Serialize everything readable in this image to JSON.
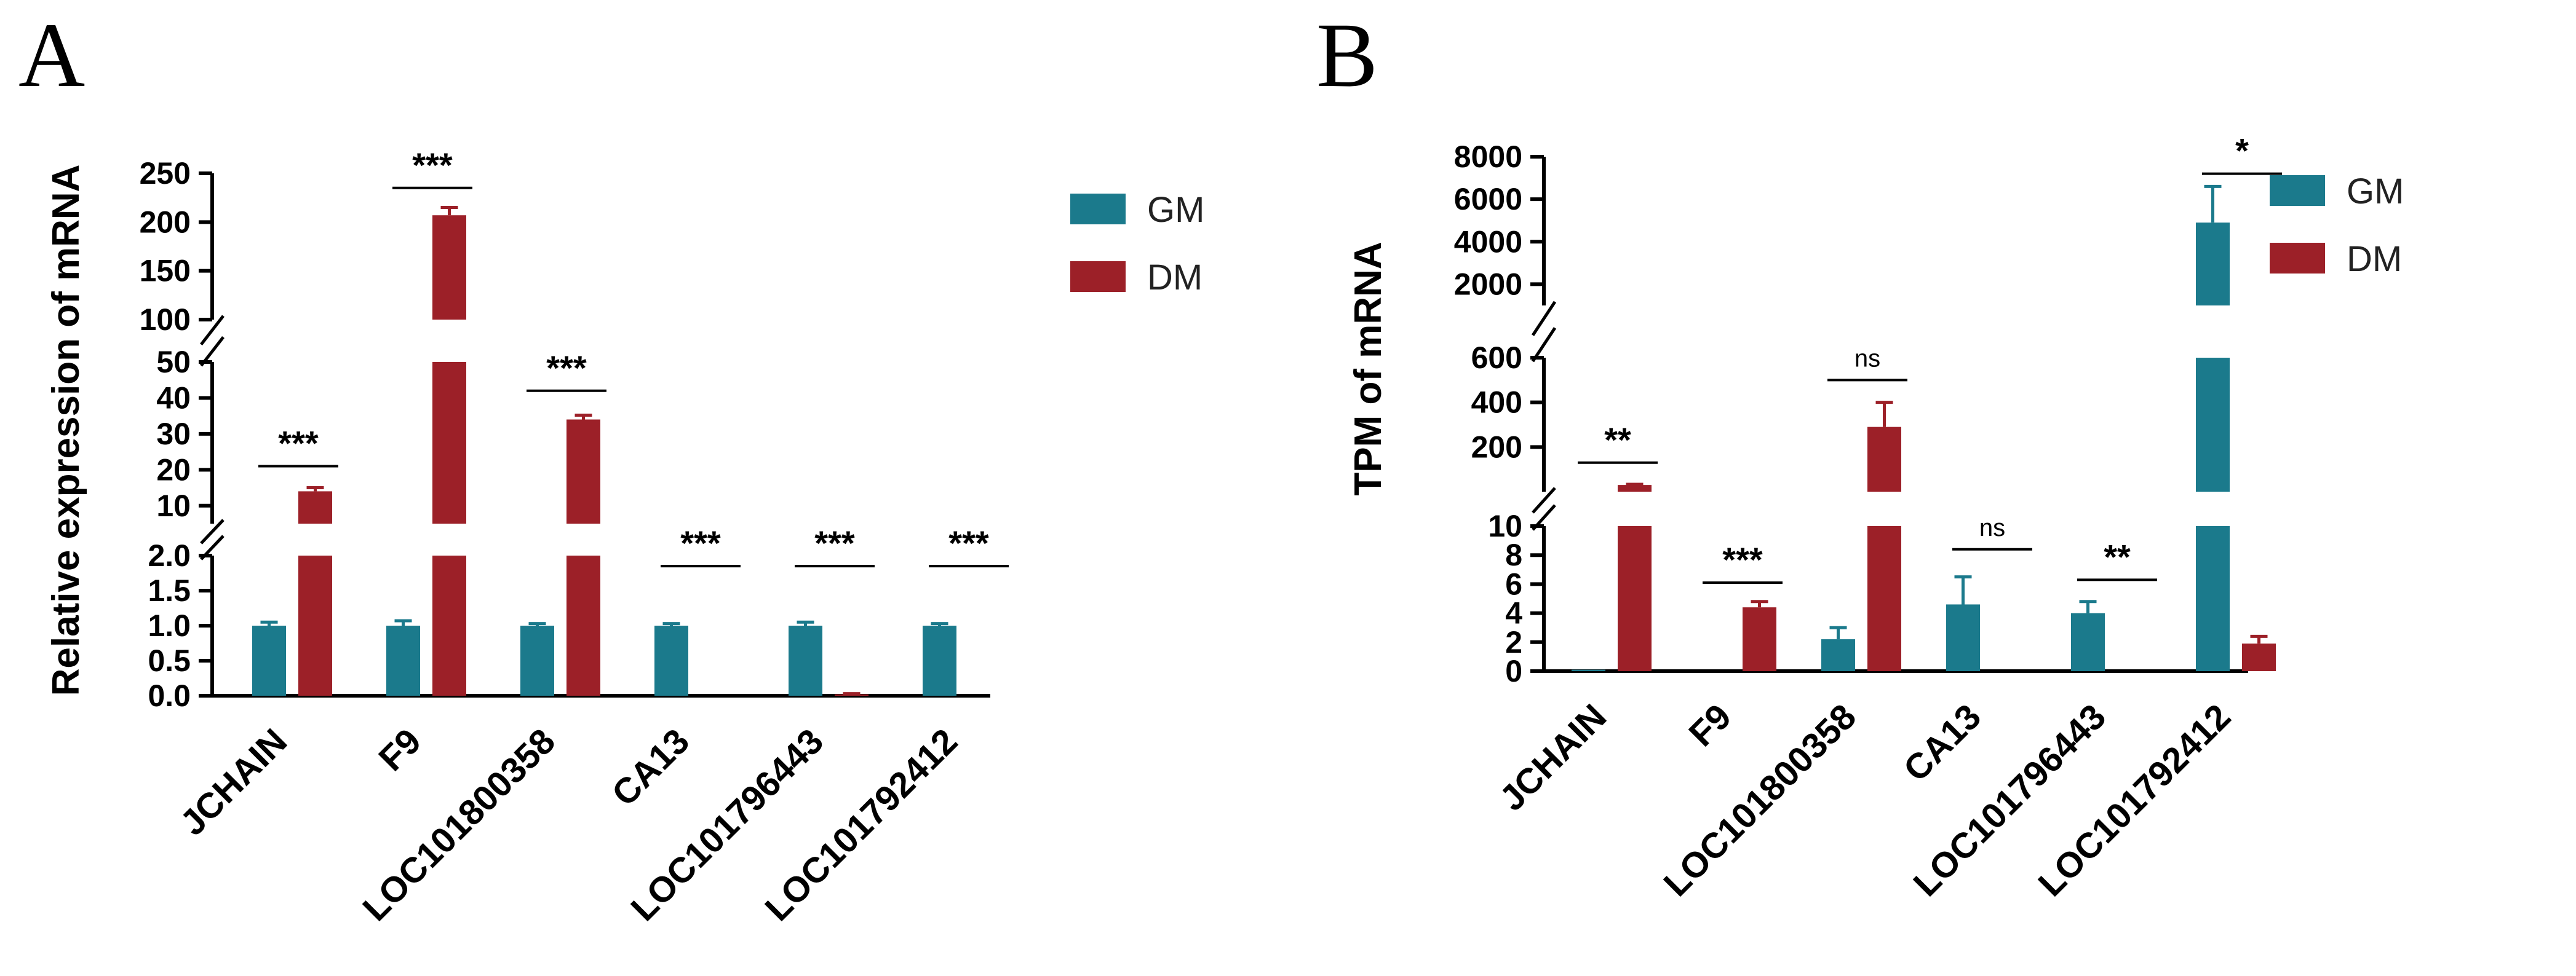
{
  "colors": {
    "GM": "#1b7a8c",
    "DM": "#9c2028"
  },
  "chart_data": [
    {
      "panel": "A",
      "type": "bar",
      "ylabel": "Relative expression of mRNA",
      "categories": [
        "JCHAIN",
        "F9",
        "LOC101800358",
        "CA13",
        "LOC101796443",
        "LOC101792412"
      ],
      "series": [
        {
          "name": "GM",
          "values": [
            1.0,
            1.0,
            1.0,
            1.0,
            1.0,
            1.0
          ],
          "errors": [
            0.05,
            0.07,
            0.03,
            0.03,
            0.05,
            0.03
          ]
        },
        {
          "name": "DM",
          "values": [
            14,
            207,
            34,
            0.0,
            0.02,
            0.0
          ],
          "errors": [
            1.0,
            8,
            1.2,
            0,
            0.01,
            0
          ]
        }
      ],
      "segments": [
        {
          "range": [
            0,
            2
          ],
          "ticks": [
            0,
            0.5,
            1.0,
            1.5,
            2.0
          ],
          "tick_labels": [
            "0.0",
            "0.5",
            "1.0",
            "1.5",
            "2.0"
          ]
        },
        {
          "range": [
            5,
            50
          ],
          "ticks": [
            10,
            20,
            30,
            40,
            50
          ],
          "tick_labels": [
            "10",
            "20",
            "30",
            "40",
            "50"
          ]
        },
        {
          "range": [
            100,
            250
          ],
          "ticks": [
            100,
            150,
            200,
            250
          ],
          "tick_labels": [
            "100",
            "150",
            "200",
            "250"
          ]
        }
      ],
      "significance": [
        {
          "index": 0,
          "label": "***",
          "y": 21
        },
        {
          "index": 1,
          "label": "***",
          "y": 235
        },
        {
          "index": 2,
          "label": "***",
          "y": 42
        },
        {
          "index": 3,
          "label": "***",
          "y": 1.85
        },
        {
          "index": 4,
          "label": "***",
          "y": 1.85
        },
        {
          "index": 5,
          "label": "***",
          "y": 1.85
        }
      ],
      "legend": [
        "GM",
        "DM"
      ]
    },
    {
      "panel": "B",
      "type": "bar",
      "ylabel": "TPM of mRNA",
      "categories": [
        "JCHAIN",
        "F9",
        "LOC101800358",
        "CA13",
        "LOC101796443",
        "LOC101792412"
      ],
      "series": [
        {
          "name": "GM",
          "values": [
            0.1,
            0.0,
            2.2,
            4.6,
            4.0,
            4900
          ],
          "errors": [
            0,
            0,
            0.8,
            1.9,
            0.8,
            1700
          ]
        },
        {
          "name": "DM",
          "values": [
            30,
            4.4,
            290,
            0.0,
            0.0,
            1.9
          ],
          "errors": [
            3,
            0.4,
            110,
            0,
            0,
            0.5
          ]
        }
      ],
      "segments": [
        {
          "range": [
            0,
            10
          ],
          "ticks": [
            0,
            2,
            4,
            6,
            8,
            10
          ],
          "tick_labels": [
            "0",
            "2",
            "4",
            "6",
            "8",
            "10"
          ]
        },
        {
          "range": [
            0,
            600
          ],
          "ticks": [
            200,
            400,
            600
          ],
          "tick_labels": [
            "200",
            "400",
            "600"
          ]
        },
        {
          "range": [
            1000,
            8000
          ],
          "ticks": [
            2000,
            4000,
            6000,
            8000
          ],
          "tick_labels": [
            "2000",
            "4000",
            "6000",
            "8000"
          ]
        }
      ],
      "significance": [
        {
          "index": 0,
          "label": "**",
          "y": 130
        },
        {
          "index": 1,
          "label": "***",
          "y": 6.1
        },
        {
          "index": 2,
          "label": "ns",
          "y": 500
        },
        {
          "index": 3,
          "label": "ns",
          "y": 8.4
        },
        {
          "index": 4,
          "label": "**",
          "y": 6.3
        },
        {
          "index": 5,
          "label": "*",
          "y": 7200
        }
      ],
      "legend": [
        "GM",
        "DM"
      ]
    }
  ]
}
